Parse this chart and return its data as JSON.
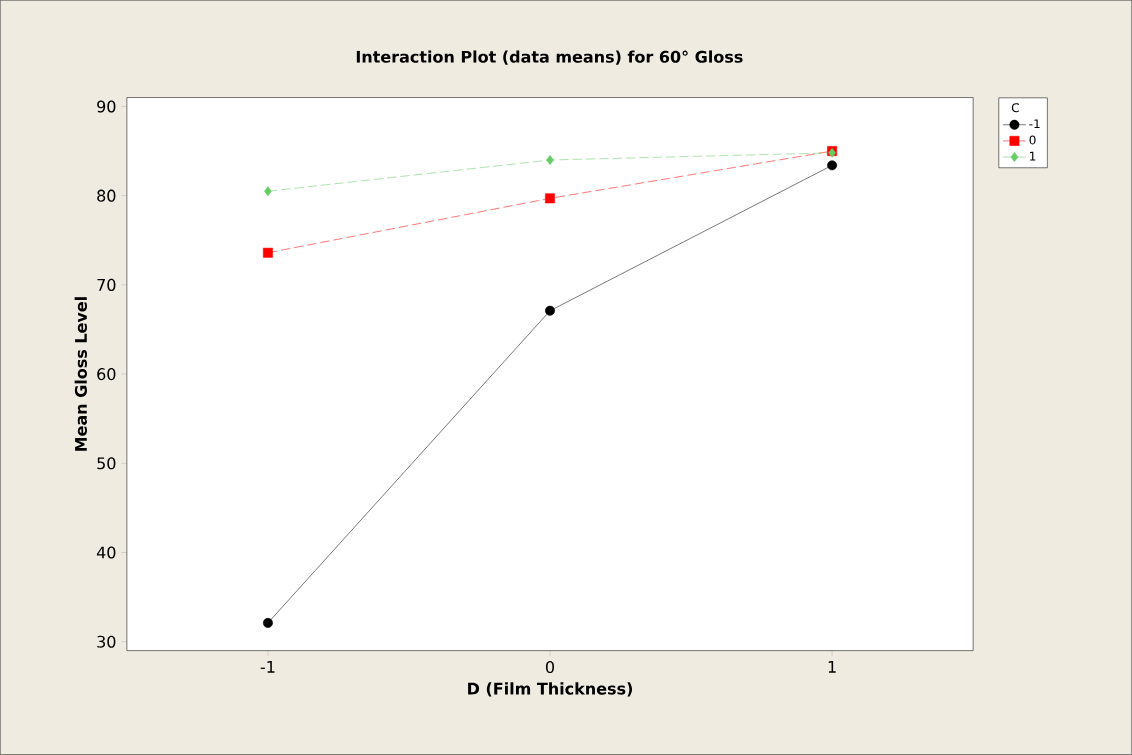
{
  "chart_data": {
    "type": "line",
    "title": "Interaction Plot (data means) for 60° Gloss",
    "xlabel": "D (Film Thickness)",
    "ylabel": "Mean Gloss Level",
    "legend_title": "C",
    "x": [
      -1,
      0,
      1
    ],
    "xlim": [
      -1.5,
      1.5
    ],
    "xticks": [
      -1,
      0,
      1
    ],
    "ylim": [
      29,
      91
    ],
    "yticks": [
      30,
      40,
      50,
      60,
      70,
      80,
      90
    ],
    "legend": "top right",
    "grid": false,
    "series": [
      {
        "name": "-1",
        "color": "#000000",
        "marker": "circle",
        "line_style": "solid",
        "values": [
          32.1,
          67.1,
          83.4
        ]
      },
      {
        "name": "0",
        "color": "#ff0000",
        "marker": "square",
        "line_style": "dashed",
        "values": [
          73.6,
          79.7,
          85.0
        ]
      },
      {
        "name": "1",
        "color": "#66cc66",
        "marker": "diamond",
        "line_style": "dashed",
        "values": [
          80.5,
          84.0,
          84.8
        ]
      }
    ]
  }
}
